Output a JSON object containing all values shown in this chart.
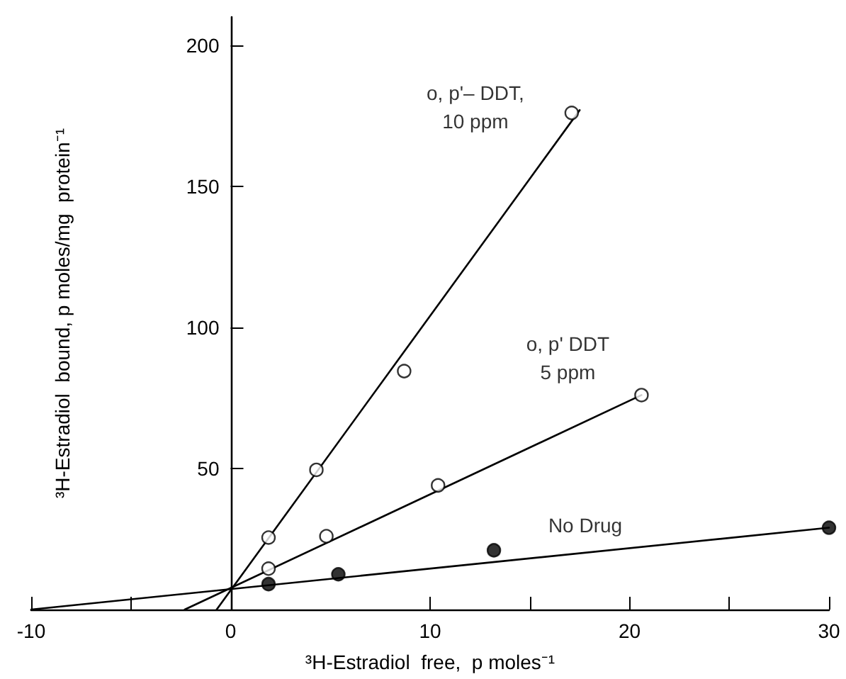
{
  "chart_data": {
    "type": "scatter",
    "xlabel": "³H-Estradiol  free,  p moles⁻¹",
    "ylabel": "³H-Estradiol  bound, p moles/mg  protein⁻¹",
    "xlim": [
      -10,
      30
    ],
    "ylim": [
      0,
      210
    ],
    "xticks": [
      -10,
      {
        "value": -5,
        "label": null
      },
      0,
      10,
      {
        "value": 15,
        "label": null
      },
      20,
      {
        "value": 25,
        "label": null
      },
      30
    ],
    "yticks": [
      {
        "value": 0,
        "label": null
      },
      50,
      100,
      150,
      200
    ],
    "grid": false,
    "legend": false,
    "marker": "circle",
    "series": [
      {
        "name": "o, p'– DDT,\n10 ppm",
        "color": "#ffffff",
        "x": [
          1.9,
          4.3,
          8.7,
          17.1
        ],
        "values": [
          25.5,
          49.5,
          84.5,
          176
        ]
      },
      {
        "name": "o, p' DDT\n5 ppm",
        "color": "#ffffff",
        "x": [
          1.9,
          4.8,
          10.4,
          20.6
        ],
        "values": [
          14.5,
          26,
          44,
          76
        ]
      },
      {
        "name": "No Drug",
        "color": "#000000",
        "x": [
          1.9,
          5.4,
          13.2,
          30
        ],
        "values": [
          9,
          12.5,
          21,
          29
        ]
      },
      {
        "type": "line",
        "color": "#000000",
        "marker": "none",
        "x": [
          -0.7,
          17.5
        ],
        "values": [
          0,
          177
        ]
      },
      {
        "type": "line",
        "color": "#000000",
        "marker": "none",
        "x": [
          -2.3,
          20.6
        ],
        "values": [
          0,
          76
        ]
      },
      {
        "type": "line",
        "color": "#000000",
        "marker": "none",
        "x": [
          -10,
          30
        ],
        "values": [
          0,
          29
        ]
      }
    ]
  }
}
